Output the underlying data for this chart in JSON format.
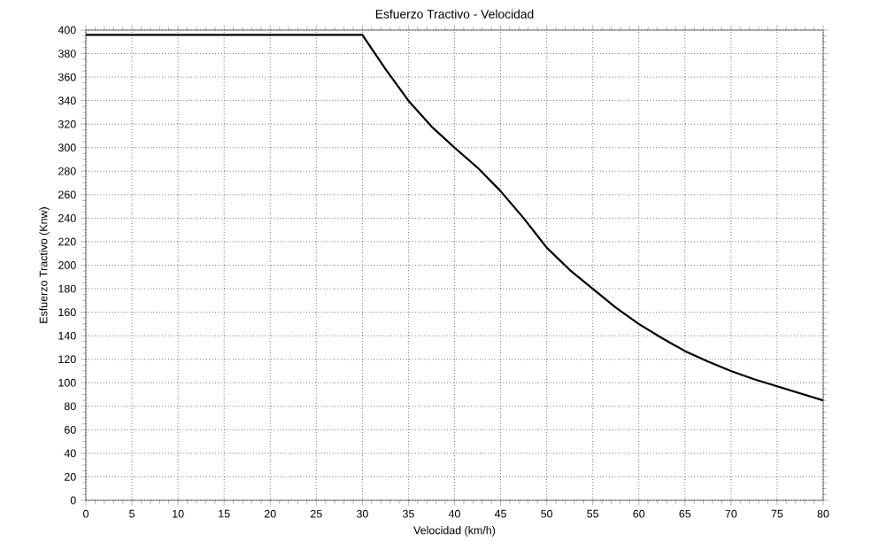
{
  "chart_data": {
    "type": "line",
    "title": "Esfuerzo Tractivo  - Velocidad",
    "xlabel": "Velocidad (km/h)",
    "ylabel": "Esfuerzo Tractivo (Knw)",
    "x": [
      0,
      30,
      32.5,
      35,
      37.5,
      40,
      42.5,
      45,
      47.5,
      50,
      52.5,
      55,
      57.5,
      60,
      62.5,
      65,
      67.5,
      70,
      72.5,
      75,
      77.5,
      80
    ],
    "series": [
      {
        "color": "#000000",
        "values": [
          396,
          396,
          367,
          340,
          318,
          300,
          283,
          263,
          240,
          215,
          196,
          180,
          164,
          150,
          138,
          127,
          118,
          110,
          103,
          97,
          91,
          85
        ]
      }
    ],
    "xlim": [
      0,
      80
    ],
    "ylim": [
      0,
      400
    ],
    "xticks": [
      0,
      5,
      10,
      15,
      20,
      25,
      30,
      35,
      40,
      45,
      50,
      55,
      60,
      65,
      70,
      75,
      80
    ],
    "yticks": [
      0,
      20,
      40,
      60,
      80,
      100,
      120,
      140,
      160,
      180,
      200,
      220,
      240,
      260,
      280,
      300,
      320,
      340,
      360,
      380,
      400
    ],
    "grid": true,
    "marker": "none",
    "line_style": "solid"
  }
}
